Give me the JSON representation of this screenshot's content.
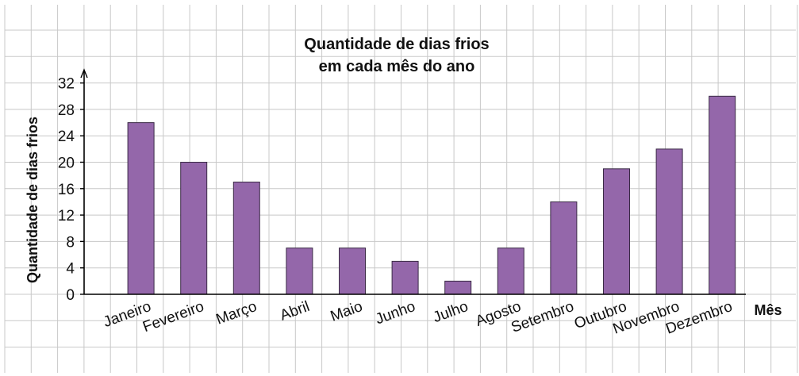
{
  "chart_data": {
    "type": "bar",
    "title_line1": "Quantidade de dias frios",
    "title_line2": "em cada mês do ano",
    "xlabel": "Mês",
    "ylabel": "Quantidade de dias frios",
    "categories": [
      "Janeiro",
      "Fevereiro",
      "Março",
      "Abril",
      "Maio",
      "Junho",
      "Julho",
      "Agosto",
      "Setembro",
      "Outubro",
      "Novembro",
      "Dezembro"
    ],
    "values": [
      26,
      20,
      17,
      7,
      7,
      5,
      2,
      7,
      14,
      19,
      22,
      30
    ],
    "yticks": [
      "0",
      "4",
      "8",
      "12",
      "16",
      "20",
      "24",
      "28",
      "32"
    ],
    "ylim": [
      0,
      32
    ],
    "grid": true,
    "colors": {
      "bar": "#9467aa",
      "bar_stroke": "#3a2a45",
      "grid": "#c8c8c8",
      "axis": "#000000"
    }
  }
}
